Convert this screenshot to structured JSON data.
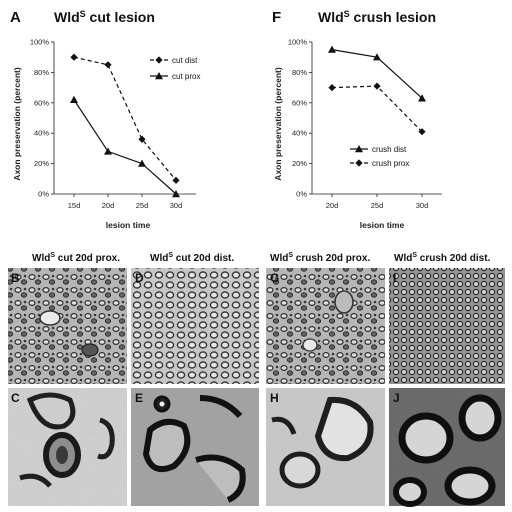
{
  "panels": {
    "A": {
      "letter": "A",
      "title": "Wld",
      "title_sup": "S",
      "title_rest": " cut lesion"
    },
    "F": {
      "letter": "F",
      "title": "Wld",
      "title_sup": "S",
      "title_rest": " crush lesion"
    }
  },
  "chart_data": [
    {
      "type": "line",
      "panel": "A",
      "xlabel": "lesion time",
      "ylabel": "Axon preservation (percent)",
      "categories": [
        "15d",
        "20d",
        "25d",
        "30d"
      ],
      "ylim": [
        0,
        100
      ],
      "yticks": [
        "0%",
        "20%",
        "40%",
        "60%",
        "80%",
        "100%"
      ],
      "legend_position": "top-right",
      "series": [
        {
          "name": "cut dist",
          "marker": "diamond",
          "dash": true,
          "values": [
            90,
            85,
            36,
            9
          ]
        },
        {
          "name": "cut prox",
          "marker": "triangle",
          "dash": false,
          "values": [
            62,
            28,
            20,
            0
          ]
        }
      ]
    },
    {
      "type": "line",
      "panel": "F",
      "xlabel": "lesion time",
      "ylabel": "Axon preservation (percent)",
      "categories": [
        "20d",
        "25d",
        "30d"
      ],
      "ylim": [
        0,
        100
      ],
      "yticks": [
        "0%",
        "20%",
        "40%",
        "60%",
        "80%",
        "100%"
      ],
      "legend_position": "bottom-left",
      "series": [
        {
          "name": "crush dist",
          "marker": "triangle",
          "dash": false,
          "values": [
            95,
            90,
            63
          ]
        },
        {
          "name": "crush prox",
          "marker": "diamond",
          "dash": true,
          "values": [
            70,
            71,
            41
          ]
        }
      ]
    }
  ],
  "micrographs": [
    {
      "letter": "B",
      "title": "Wld",
      "sup": "S",
      "rest": " cut 20d prox."
    },
    {
      "letter": "D",
      "title": "Wld",
      "sup": "S",
      "rest": " cut 20d dist."
    },
    {
      "letter": "G",
      "title": "Wld",
      "sup": "S",
      "rest": " crush 20d prox."
    },
    {
      "letter": "I",
      "title": "Wld",
      "sup": "S",
      "rest": " crush 20d dist."
    },
    {
      "letter": "C"
    },
    {
      "letter": "E"
    },
    {
      "letter": "H"
    },
    {
      "letter": "J"
    }
  ]
}
